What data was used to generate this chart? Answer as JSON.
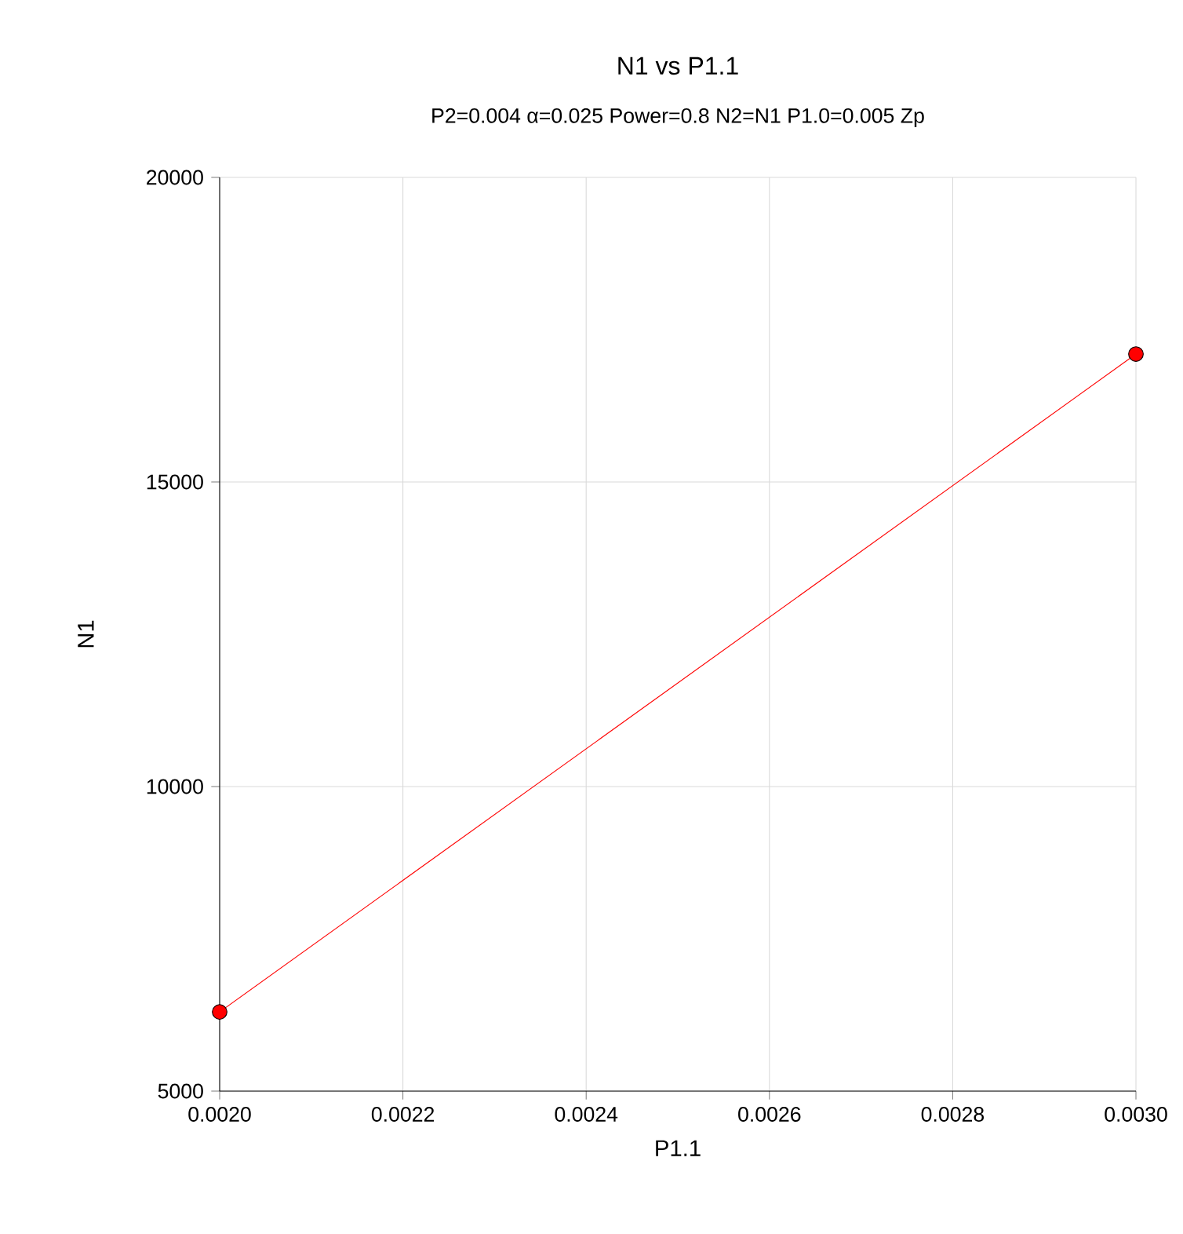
{
  "chart_data": {
    "type": "line",
    "title": "N1 vs P1.1",
    "subtitle": "P2=0.004 α=0.025 Power=0.8 N2=N1 P1.0=0.005 Zp",
    "xlabel": "P1.1",
    "ylabel": "N1",
    "x": [
      0.002,
      0.003
    ],
    "series": [
      {
        "color": "#ff0000",
        "values": [
          6300,
          17100
        ]
      }
    ],
    "xlim": [
      0.002,
      0.003
    ],
    "ylim": [
      5000,
      20000
    ],
    "xticks": [
      {
        "value": 0.002,
        "label": "0.0020"
      },
      {
        "value": 0.0022,
        "label": "0.0022"
      },
      {
        "value": 0.0024,
        "label": "0.0024"
      },
      {
        "value": 0.0026,
        "label": "0.0026"
      },
      {
        "value": 0.0028,
        "label": "0.0028"
      },
      {
        "value": 0.003,
        "label": "0.0030"
      }
    ],
    "yticks": [
      5000,
      10000,
      15000,
      20000
    ],
    "grid": true,
    "marker": "circle",
    "line_style": "solid"
  }
}
